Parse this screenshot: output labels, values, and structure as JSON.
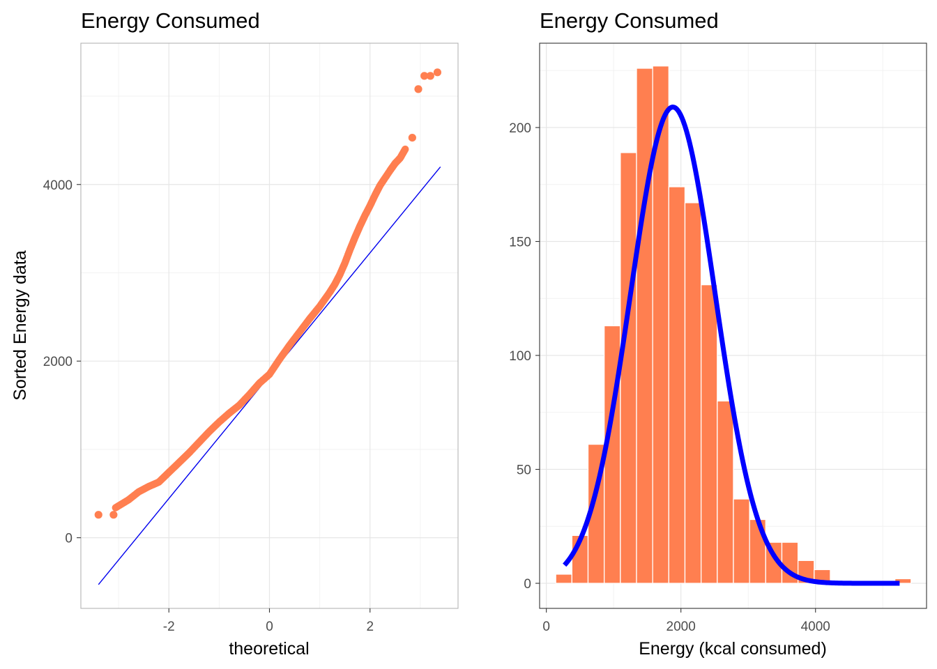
{
  "colors": {
    "points": "#FF7F50",
    "bars": "#FF7F50",
    "qq_line": "#0000EE",
    "density_curve": "#0000FF",
    "grid_major": "#E6E6E6",
    "grid_minor": "#F2F2F2",
    "panel_border": "#B3B3B3",
    "panel_border_right": "#333333"
  },
  "chart_data": [
    {
      "type": "scatter",
      "title": "Energy Consumed",
      "xlabel": "theoretical",
      "ylabel": "Sorted Energy data",
      "xlim": [
        -3.75,
        3.75
      ],
      "ylim": [
        -800,
        5600
      ],
      "x_ticks": [
        -2,
        0,
        2
      ],
      "x_tick_labels": [
        "-2",
        "0",
        "2"
      ],
      "y_ticks": [
        0,
        2000,
        4000
      ],
      "y_tick_labels": [
        "0",
        "2000",
        "4000"
      ],
      "grid": true,
      "reference_line": {
        "x": [
          -3.4,
          3.4
        ],
        "y": [
          -530,
          4200
        ]
      },
      "quantile_curve": {
        "x": [
          -3.06,
          -2.8,
          -2.6,
          -2.4,
          -2.2,
          -2.0,
          -1.8,
          -1.6,
          -1.4,
          -1.2,
          -1.0,
          -0.8,
          -0.6,
          -0.4,
          -0.2,
          0.0,
          0.2,
          0.4,
          0.6,
          0.8,
          1.0,
          1.2,
          1.3,
          1.4,
          1.5,
          1.6,
          1.7,
          1.8,
          1.9,
          2.0,
          2.1,
          2.2,
          2.4,
          2.5,
          2.6,
          2.7
        ],
        "y": [
          340,
          430,
          520,
          580,
          630,
          740,
          850,
          960,
          1080,
          1200,
          1310,
          1410,
          1500,
          1620,
          1750,
          1850,
          2020,
          2180,
          2330,
          2480,
          2620,
          2780,
          2870,
          2980,
          3110,
          3260,
          3400,
          3530,
          3650,
          3760,
          3880,
          3990,
          4160,
          4240,
          4300,
          4400
        ]
      },
      "extra_points": {
        "x": [
          -3.4,
          -3.1,
          2.84,
          2.96,
          3.08,
          3.2,
          3.34
        ],
        "y": [
          260,
          260,
          4530,
          5080,
          5230,
          5230,
          5270
        ]
      }
    },
    {
      "type": "bar",
      "title": "Energy Consumed",
      "xlabel": "Energy (kcal consumed)",
      "ylabel": "",
      "xlim": [
        -100,
        5650
      ],
      "ylim": [
        -11,
        237
      ],
      "x_ticks": [
        0,
        2000,
        4000
      ],
      "x_tick_labels": [
        "0",
        "2000",
        "4000"
      ],
      "y_ticks": [
        0,
        50,
        100,
        150,
        200
      ],
      "y_tick_labels": [
        "0",
        "50",
        "100",
        "150",
        "200"
      ],
      "grid": true,
      "bin_width": 240,
      "bin_centers": [
        260,
        500,
        740,
        980,
        1220,
        1460,
        1700,
        1940,
        2180,
        2420,
        2660,
        2900,
        3140,
        3380,
        3620,
        3860,
        4100,
        4340,
        4580,
        4820,
        5060,
        5300
      ],
      "values": [
        4,
        21,
        61,
        113,
        189,
        226,
        227,
        174,
        167,
        131,
        80,
        37,
        28,
        18,
        18,
        10,
        6,
        1,
        1,
        1,
        0,
        2
      ],
      "curve": {
        "type": "normal",
        "peak": 209,
        "mean": 1880,
        "sd": 630,
        "x_range": [
          270,
          5250
        ]
      }
    }
  ]
}
